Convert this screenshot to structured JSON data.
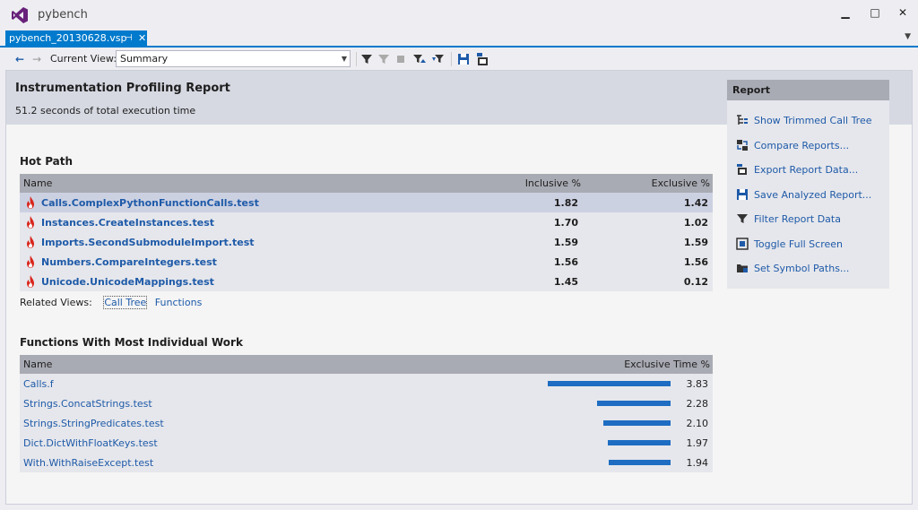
{
  "window": {
    "title": "pybench",
    "minimize": "▁",
    "maximize": "□",
    "close": "✕"
  },
  "tab": {
    "label": "pybench_20130628.vsp",
    "pin": "⊣",
    "close": "✕"
  },
  "toolbar": {
    "current_view_label": "Current View:",
    "current_view_value": "Summary"
  },
  "report": {
    "title": "Instrumentation Profiling Report",
    "subtitle": "51.2 seconds of total execution time"
  },
  "hot_path": {
    "title": "Hot Path",
    "columns": [
      "Name",
      "Inclusive %",
      "Exclusive %"
    ],
    "rows": [
      {
        "name": "Calls.ComplexPythonFunctionCalls.test",
        "inclusive": "1.82",
        "exclusive": "1.42"
      },
      {
        "name": "Instances.CreateInstances.test",
        "inclusive": "1.70",
        "exclusive": "1.02"
      },
      {
        "name": "Imports.SecondSubmoduleImport.test",
        "inclusive": "1.59",
        "exclusive": "1.59"
      },
      {
        "name": "Numbers.CompareIntegers.test",
        "inclusive": "1.56",
        "exclusive": "1.56"
      },
      {
        "name": "Unicode.UnicodeMappings.test",
        "inclusive": "1.45",
        "exclusive": "0.12"
      }
    ]
  },
  "related_views": {
    "label": "Related Views:",
    "call_tree": "Call Tree",
    "functions": "Functions"
  },
  "functions": {
    "title": "Functions With Most Individual Work",
    "columns": [
      "Name",
      "Exclusive Time %"
    ],
    "rows": [
      {
        "name": "Calls.f",
        "value": "3.83",
        "fraction": 3.83
      },
      {
        "name": "Strings.ConcatStrings.test",
        "value": "2.28",
        "fraction": 2.28
      },
      {
        "name": "Strings.StringPredicates.test",
        "value": "2.10",
        "fraction": 2.1
      },
      {
        "name": "Dict.DictWithFloatKeys.test",
        "value": "1.97",
        "fraction": 1.97
      },
      {
        "name": "With.WithRaiseExcept.test",
        "value": "1.94",
        "fraction": 1.94
      }
    ]
  },
  "side_panel": {
    "title": "Report",
    "items": [
      {
        "label": "Show Trimmed Call Tree",
        "icon": "trimmed-call-tree-icon"
      },
      {
        "label": "Compare Reports...",
        "icon": "compare-reports-icon"
      },
      {
        "label": "Export Report Data...",
        "icon": "export-icon"
      },
      {
        "label": "Save Analyzed Report...",
        "icon": "save-icon"
      },
      {
        "label": "Filter Report Data",
        "icon": "filter-icon"
      },
      {
        "label": "Toggle Full Screen",
        "icon": "full-screen-icon"
      },
      {
        "label": "Set Symbol Paths...",
        "icon": "symbol-paths-icon"
      }
    ]
  },
  "colors": {
    "accent": "#007acc",
    "link": "#1e5aa8",
    "bar": "#1e6dc2",
    "flame": "#d9261c"
  }
}
